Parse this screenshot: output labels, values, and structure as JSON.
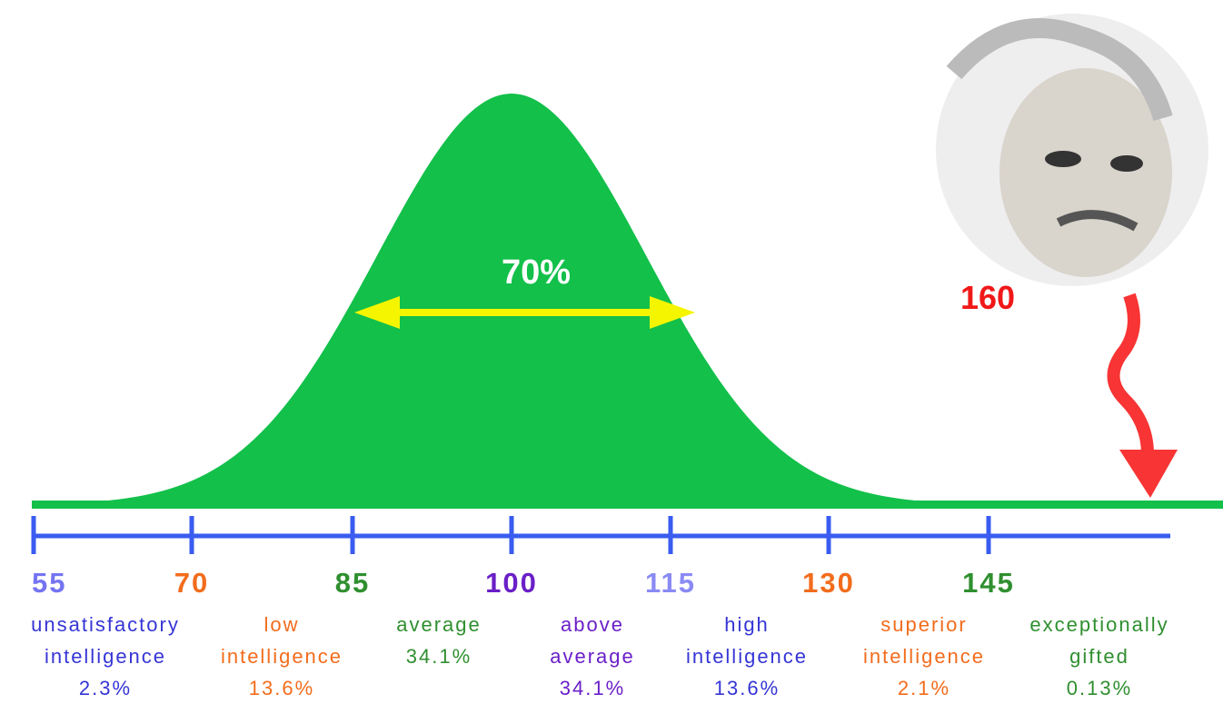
{
  "annotations": {
    "center": "70%",
    "marker": "160"
  },
  "axis": {
    "ticks": [
      {
        "label": "55",
        "color": "#7474f2"
      },
      {
        "label": "70",
        "color": "#f26c1c"
      },
      {
        "label": "85",
        "color": "#2f8f2f"
      },
      {
        "label": "100",
        "color": "#6a1fc8"
      },
      {
        "label": "115",
        "color": "#8a8af5"
      },
      {
        "label": "130",
        "color": "#f26c1c"
      },
      {
        "label": "145",
        "color": "#2f8f2f"
      }
    ]
  },
  "categories": [
    {
      "lines": [
        "unsatisfactory",
        "intelligence",
        "2.3%"
      ],
      "color": "#3535d6"
    },
    {
      "lines": [
        "low",
        "intelligence",
        "13.6%"
      ],
      "color": "#f26c1c"
    },
    {
      "lines": [
        "average",
        "34.1%"
      ],
      "color": "#2f8f2f"
    },
    {
      "lines": [
        "above",
        "average",
        "34.1%"
      ],
      "color": "#6a1fc8"
    },
    {
      "lines": [
        "high",
        "intelligence",
        "13.6%"
      ],
      "color": "#3535d6"
    },
    {
      "lines": [
        "superior",
        "intelligence",
        "2.1%"
      ],
      "color": "#f26c1c"
    },
    {
      "lines": [
        "exceptionally",
        "gifted",
        "0.13%"
      ],
      "color": "#2f8f2f"
    }
  ]
}
